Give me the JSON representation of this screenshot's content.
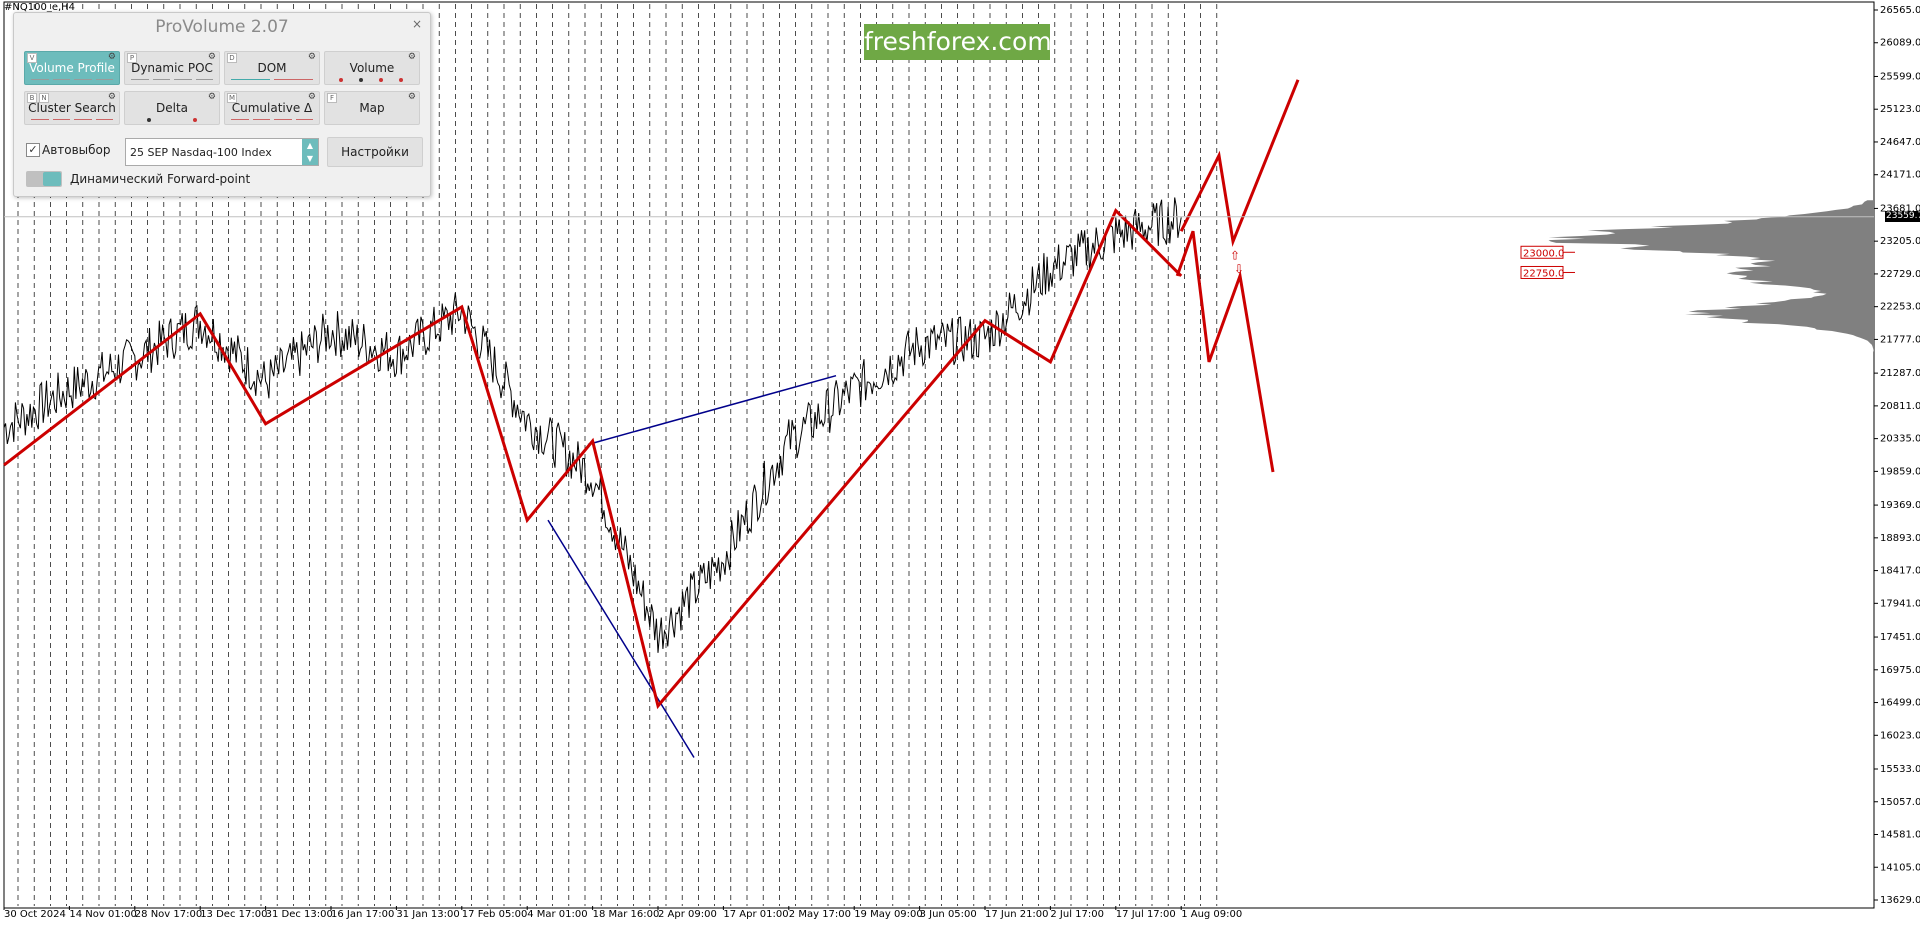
{
  "chart_header": {
    "symbol": "#NQ100_e,H4"
  },
  "watermark": "freshforex.com",
  "panel": {
    "title": "ProVolume 2.07",
    "close": "×",
    "buttons": [
      {
        "label": "Volume Profile",
        "key": "V",
        "active": true
      },
      {
        "label": "Dynamic POC",
        "key": "P",
        "active": false
      },
      {
        "label": "DOM",
        "key": "D",
        "active": false
      },
      {
        "label": "Volume",
        "key": "",
        "active": false
      },
      {
        "label": "Cluster Search",
        "key": "B  N",
        "active": false
      },
      {
        "label": "Delta",
        "key": "",
        "active": false
      },
      {
        "label": "Cumulative Δ",
        "key": "M",
        "active": false
      },
      {
        "label": "Map",
        "key": "F",
        "active": false
      }
    ],
    "auto_select_label": "Автовыбор",
    "instrument": "25 SEP Nasdaq-100 Index",
    "settings_label": "Настройки",
    "forward_point_label": "Динамический Forward-point"
  },
  "price_tag": "23559.7",
  "levels": [
    {
      "label": "23000.0"
    },
    {
      "label": "22750.0"
    }
  ],
  "colors": {
    "zigzag": "#cc0000",
    "trend": "#00008b",
    "profile": "#808080",
    "panel_accent": "#6dbcbc"
  },
  "chart_data": {
    "type": "line",
    "title": "",
    "xlabel": "",
    "ylabel": "",
    "ylim": [
      13629.0,
      26565.0
    ],
    "y_ticks": [
      "26565.0",
      "26089.0",
      "25599.0",
      "25123.0",
      "24647.0",
      "24171.0",
      "23681.0",
      "23205.0",
      "22729.0",
      "22253.0",
      "21777.0",
      "21287.0",
      "20811.0",
      "20335.0",
      "19859.0",
      "19369.0",
      "18893.0",
      "18417.0",
      "17941.0",
      "17451.0",
      "16975.0",
      "16499.0",
      "16023.0",
      "15533.0",
      "15057.0",
      "14581.0",
      "14105.0",
      "13629.0"
    ],
    "x_ticks": [
      "30 Oct 2024",
      "14 Nov 01:00",
      "28 Nov 17:00",
      "13 Dec 17:00",
      "31 Dec 13:00",
      "16 Jan 17:00",
      "31 Jan 13:00",
      "17 Feb 05:00",
      "4 Mar 01:00",
      "18 Mar 16:00",
      "2 Apr 09:00",
      "17 Apr 01:00",
      "2 May 17:00",
      "19 May 09:00",
      "3 Jun 05:00",
      "17 Jun 21:00",
      "2 Jul 17:00",
      "17 Jul 17:00",
      "1 Aug 09:00"
    ],
    "price_series": {
      "name": "",
      "points": [
        [
          "30 Oct 2024",
          20500
        ],
        [
          "14 Nov 01:00",
          21050
        ],
        [
          "28 Nov 17:00",
          21500
        ],
        [
          "13 Dec 17:00",
          22050
        ],
        [
          "31 Dec 13:00",
          21150
        ],
        [
          "16 Jan 17:00",
          21900
        ],
        [
          "31 Jan 13:00",
          21550
        ],
        [
          "17 Feb 05:00",
          22200
        ],
        [
          "4 Mar 01:00",
          20600
        ],
        [
          "18 Mar 16:00",
          19800
        ],
        [
          "2 Apr 09:00",
          17500
        ],
        [
          "17 Apr 01:00",
          18600
        ],
        [
          "2 May 17:00",
          20300
        ],
        [
          "19 May 09:00",
          21050
        ],
        [
          "3 Jun 05:00",
          21700
        ],
        [
          "17 Jun 21:00",
          21800
        ],
        [
          "2 Jul 17:00",
          22800
        ],
        [
          "17 Jul 17:00",
          23300
        ],
        [
          "1 Aug 09:00",
          23550
        ]
      ]
    },
    "zigzag": [
      [
        "30 Oct 2024",
        19950
      ],
      [
        "13 Dec 17:00",
        22150
      ],
      [
        "31 Dec 13:00",
        20550
      ],
      [
        "17 Feb 05:00",
        22250
      ],
      [
        "4 Mar 01:00",
        19150
      ],
      [
        "18 Mar 16:00",
        20300
      ],
      [
        "2 Apr 09:00",
        16450
      ],
      [
        "17 Jun 21:00",
        22050
      ],
      [
        "2 Jul 17:00",
        21450
      ],
      [
        "17 Jul 17:00",
        23650
      ],
      [
        "1 Aug 09:00",
        22700
      ]
    ],
    "projection_up": [
      [
        23350,
        24450
      ],
      [
        24450,
        23200
      ],
      [
        23200,
        25550
      ]
    ],
    "projection_down": [
      [
        22700,
        23350
      ],
      [
        23350,
        21450
      ],
      [
        21450,
        22700
      ],
      [
        22700,
        19850
      ]
    ],
    "trendlines": [
      {
        "from": 20250,
        "to": 21250
      },
      {
        "from": 19150,
        "to": 15700
      }
    ],
    "level_lines": [
      23000.0,
      22750.0
    ],
    "current_price": 23559.7
  }
}
